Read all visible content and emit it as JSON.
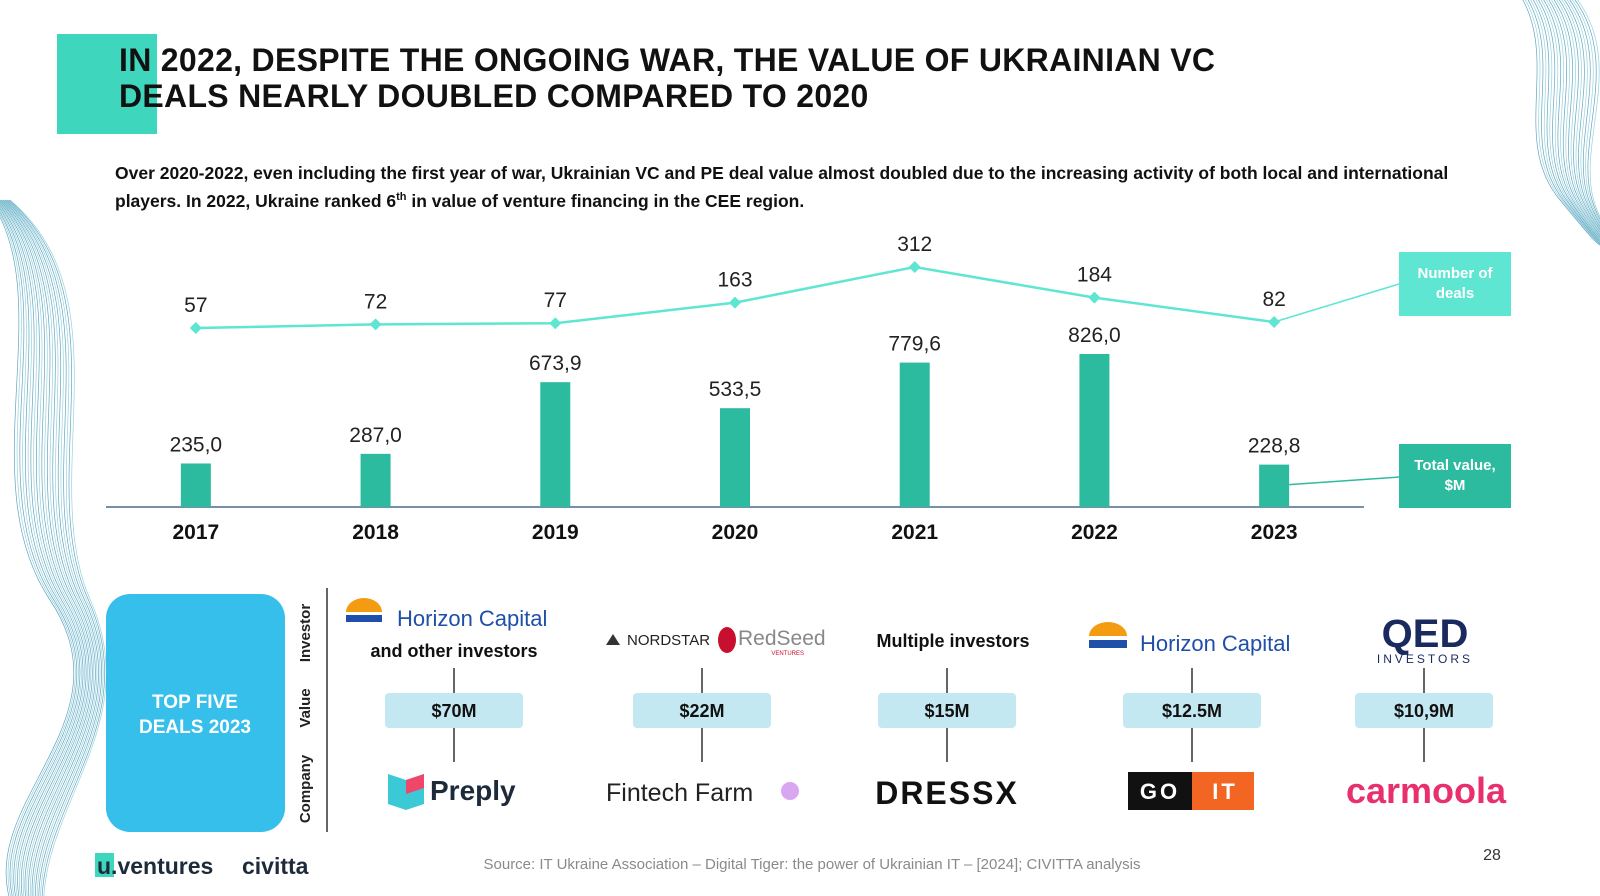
{
  "title": [
    "IN 2022, DESPITE THE ONGOING WAR, THE VALUE OF UKRAINIAN VC",
    "DEALS NEARLY DOUBLED COMPARED TO 2020"
  ],
  "subtitle": [
    "Over 2020-2022, even including the first year of war, Ukrainian VC and PE deal value almost doubled due to the increasing activity of both local and international players. In 2022, Ukraine ranked 6",
    "th",
    " in value of venture financing in the CEE region."
  ],
  "chart_data": {
    "type": "bar",
    "categories": [
      "2017",
      "2018",
      "2019",
      "2020",
      "2021",
      "2022",
      "2023"
    ],
    "series": [
      {
        "name": "Total value, $M",
        "type": "bar",
        "color": "#2dbba0",
        "values": [
          235.0,
          287.0,
          673.9,
          533.5,
          779.6,
          826.0,
          228.8
        ],
        "value_labels": [
          "235,0",
          "287,0",
          "673,9",
          "533,5",
          "779,6",
          "826,0",
          "228,8"
        ]
      },
      {
        "name": "Number of deals",
        "type": "line",
        "axis": "y2",
        "color": "#5ee6d2",
        "values": [
          57,
          72,
          77,
          163,
          312,
          184,
          82
        ]
      }
    ]
  },
  "deals": {
    "label": [
      "TOP FIVE",
      "DEALS 2023"
    ],
    "row_labels": [
      "Investor",
      "Value",
      "Company"
    ],
    "items": [
      {
        "investor": [
          "Horizon Capital",
          "and other investors"
        ],
        "value": "$70M",
        "company": [
          "Preply"
        ]
      },
      {
        "investor": [
          "NORDSTAR",
          "RedSeed",
          "VENTURES"
        ],
        "value": "$22M",
        "company": [
          "Fintech Farm"
        ]
      },
      {
        "investor": [
          "Multiple investors"
        ],
        "value": "$15M",
        "company": [
          "DRESSX"
        ]
      },
      {
        "investor": [
          "Horizon Capital"
        ],
        "value": "$12.5M",
        "company": [
          "GO",
          "IT"
        ]
      },
      {
        "investor": [
          "QED",
          "INVESTORS"
        ],
        "value": "$10,9M",
        "company": [
          "carmoola"
        ]
      }
    ]
  },
  "footer": {
    "logos": [
      "u.ventures",
      "civitta"
    ],
    "source": "Source: IT Ukraine Association – Digital Tiger: the power of Ukrainian IT – [2024]; CIVITTA analysis",
    "page_number": "28"
  }
}
